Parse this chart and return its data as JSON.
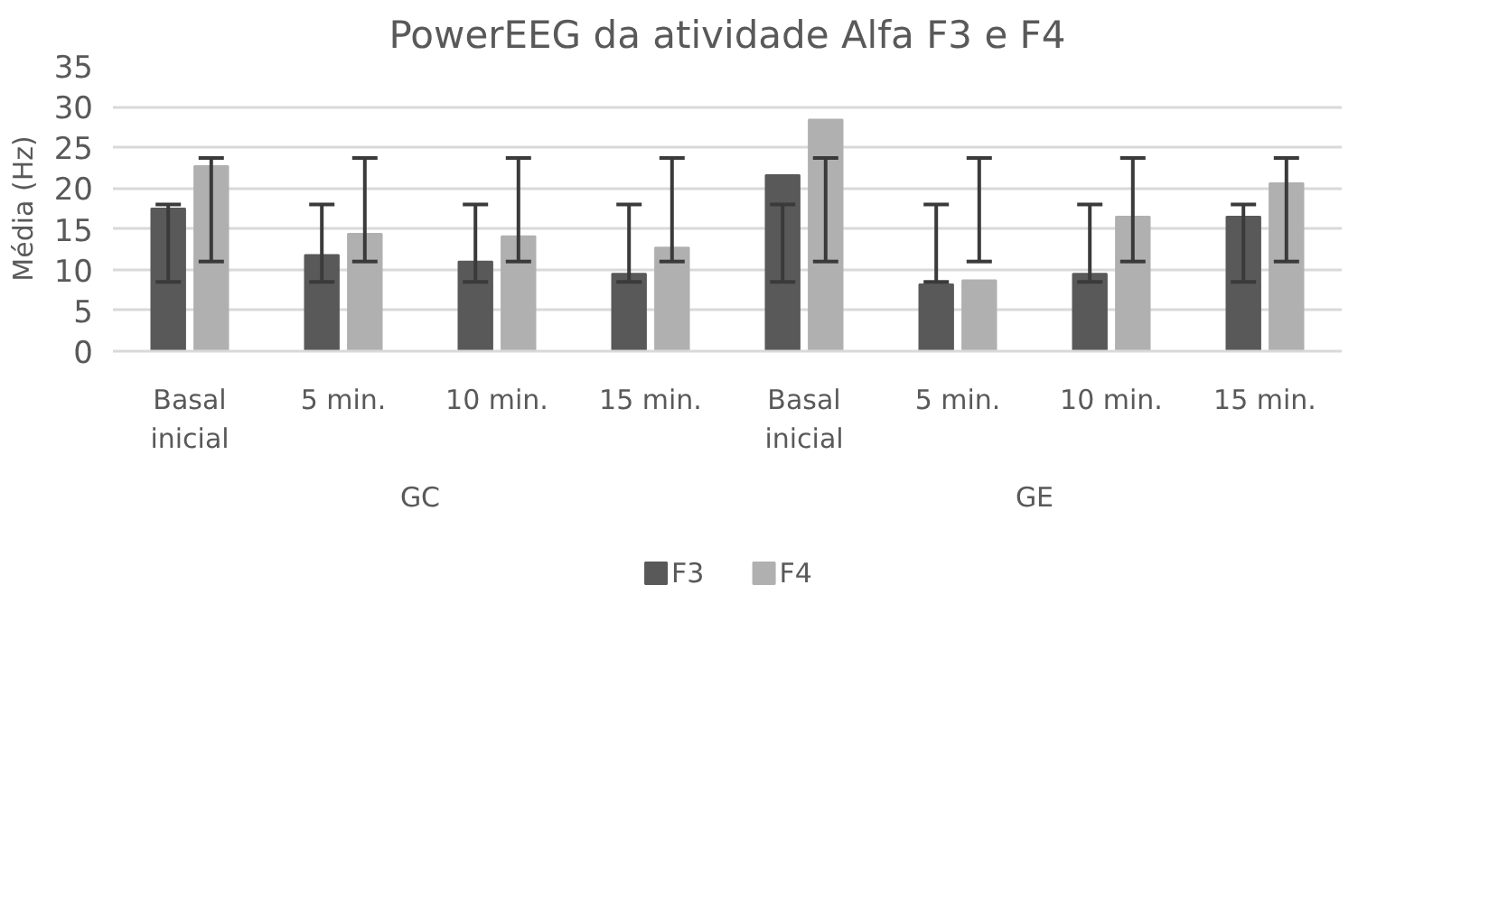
{
  "chart_data": {
    "type": "bar",
    "title": "PowerEEG da atividade Alfa F3 e F4",
    "ylabel": "Média (Hz)",
    "categories": [
      "Basal inicial",
      "5 min.",
      "10 min.",
      "15 min.",
      "Basal inicial",
      "5 min.",
      "10 min.",
      "15 min."
    ],
    "annotations": [
      "GC",
      "GE"
    ],
    "series": [
      {
        "name": "F3",
        "color": "#595959",
        "values": [
          17.5,
          11.8,
          11.0,
          9.5,
          21.6,
          8.2,
          9.5,
          16.5
        ],
        "errors": [
          [
            8.5,
            18
          ],
          [
            8.5,
            18
          ],
          [
            8.5,
            18
          ],
          [
            8.5,
            18
          ],
          [
            8.5,
            18
          ],
          [
            8.5,
            18
          ],
          [
            8.5,
            18
          ],
          [
            8.5,
            18
          ]
        ]
      },
      {
        "name": "F4",
        "color": "#b0b0b0",
        "values": [
          22.7,
          14.4,
          14.1,
          12.7,
          28.4,
          8.7,
          16.5,
          20.6
        ],
        "errors": [
          [
            11,
            23.7
          ],
          [
            11,
            23.7
          ],
          [
            11,
            23.7
          ],
          [
            11,
            23.7
          ],
          [
            11,
            23.7
          ],
          [
            11,
            23.7
          ],
          [
            11,
            23.7
          ],
          [
            11,
            23.7
          ]
        ]
      }
    ],
    "ylim": [
      0,
      35
    ],
    "yticks": [
      0,
      5,
      10,
      15,
      20,
      25,
      30,
      35
    ],
    "grid": "y",
    "legend": "bottom"
  }
}
